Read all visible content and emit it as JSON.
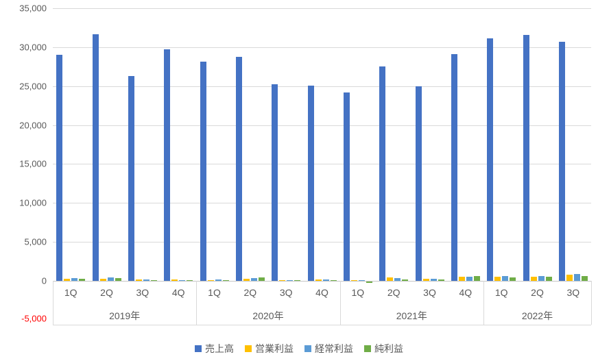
{
  "chart_data": {
    "type": "bar",
    "title": "",
    "ylim": [
      -5000,
      35000
    ],
    "ytick_interval": 5000,
    "grid": true,
    "legend_position": "bottom",
    "gridline_color": "#D9D9D9",
    "axis_label_color": "#595959",
    "negative_tick_color": "#FF0000",
    "year_groups": [
      {
        "label": "2019年",
        "quarters": [
          "1Q",
          "2Q",
          "3Q",
          "4Q"
        ]
      },
      {
        "label": "2020年",
        "quarters": [
          "1Q",
          "2Q",
          "3Q",
          "4Q"
        ]
      },
      {
        "label": "2021年",
        "quarters": [
          "1Q",
          "2Q",
          "3Q",
          "4Q"
        ]
      },
      {
        "label": "2022年",
        "quarters": [
          "1Q",
          "2Q",
          "3Q"
        ]
      }
    ],
    "series": [
      {
        "name": "売上高",
        "slug": "sales",
        "color": "#4472C4",
        "values": [
          29000,
          31700,
          26300,
          29700,
          28100,
          28800,
          25200,
          25100,
          24200,
          27500,
          25000,
          29100,
          31100,
          31600,
          30700
        ]
      },
      {
        "name": "営業利益",
        "slug": "operating-profit",
        "color": "#FFC000",
        "values": [
          250,
          300,
          150,
          150,
          100,
          300,
          80,
          150,
          50,
          400,
          250,
          500,
          500,
          550,
          800
        ]
      },
      {
        "name": "経常利益",
        "slug": "ordinary-profit",
        "color": "#5B9BD5",
        "values": [
          350,
          400,
          200,
          100,
          180,
          350,
          120,
          180,
          80,
          350,
          280,
          550,
          600,
          650,
          900
        ]
      },
      {
        "name": "純利益",
        "slug": "net-profit",
        "color": "#70AD47",
        "values": [
          280,
          350,
          100,
          50,
          100,
          450,
          80,
          100,
          -150,
          200,
          150,
          650,
          450,
          500,
          600
        ]
      }
    ]
  }
}
